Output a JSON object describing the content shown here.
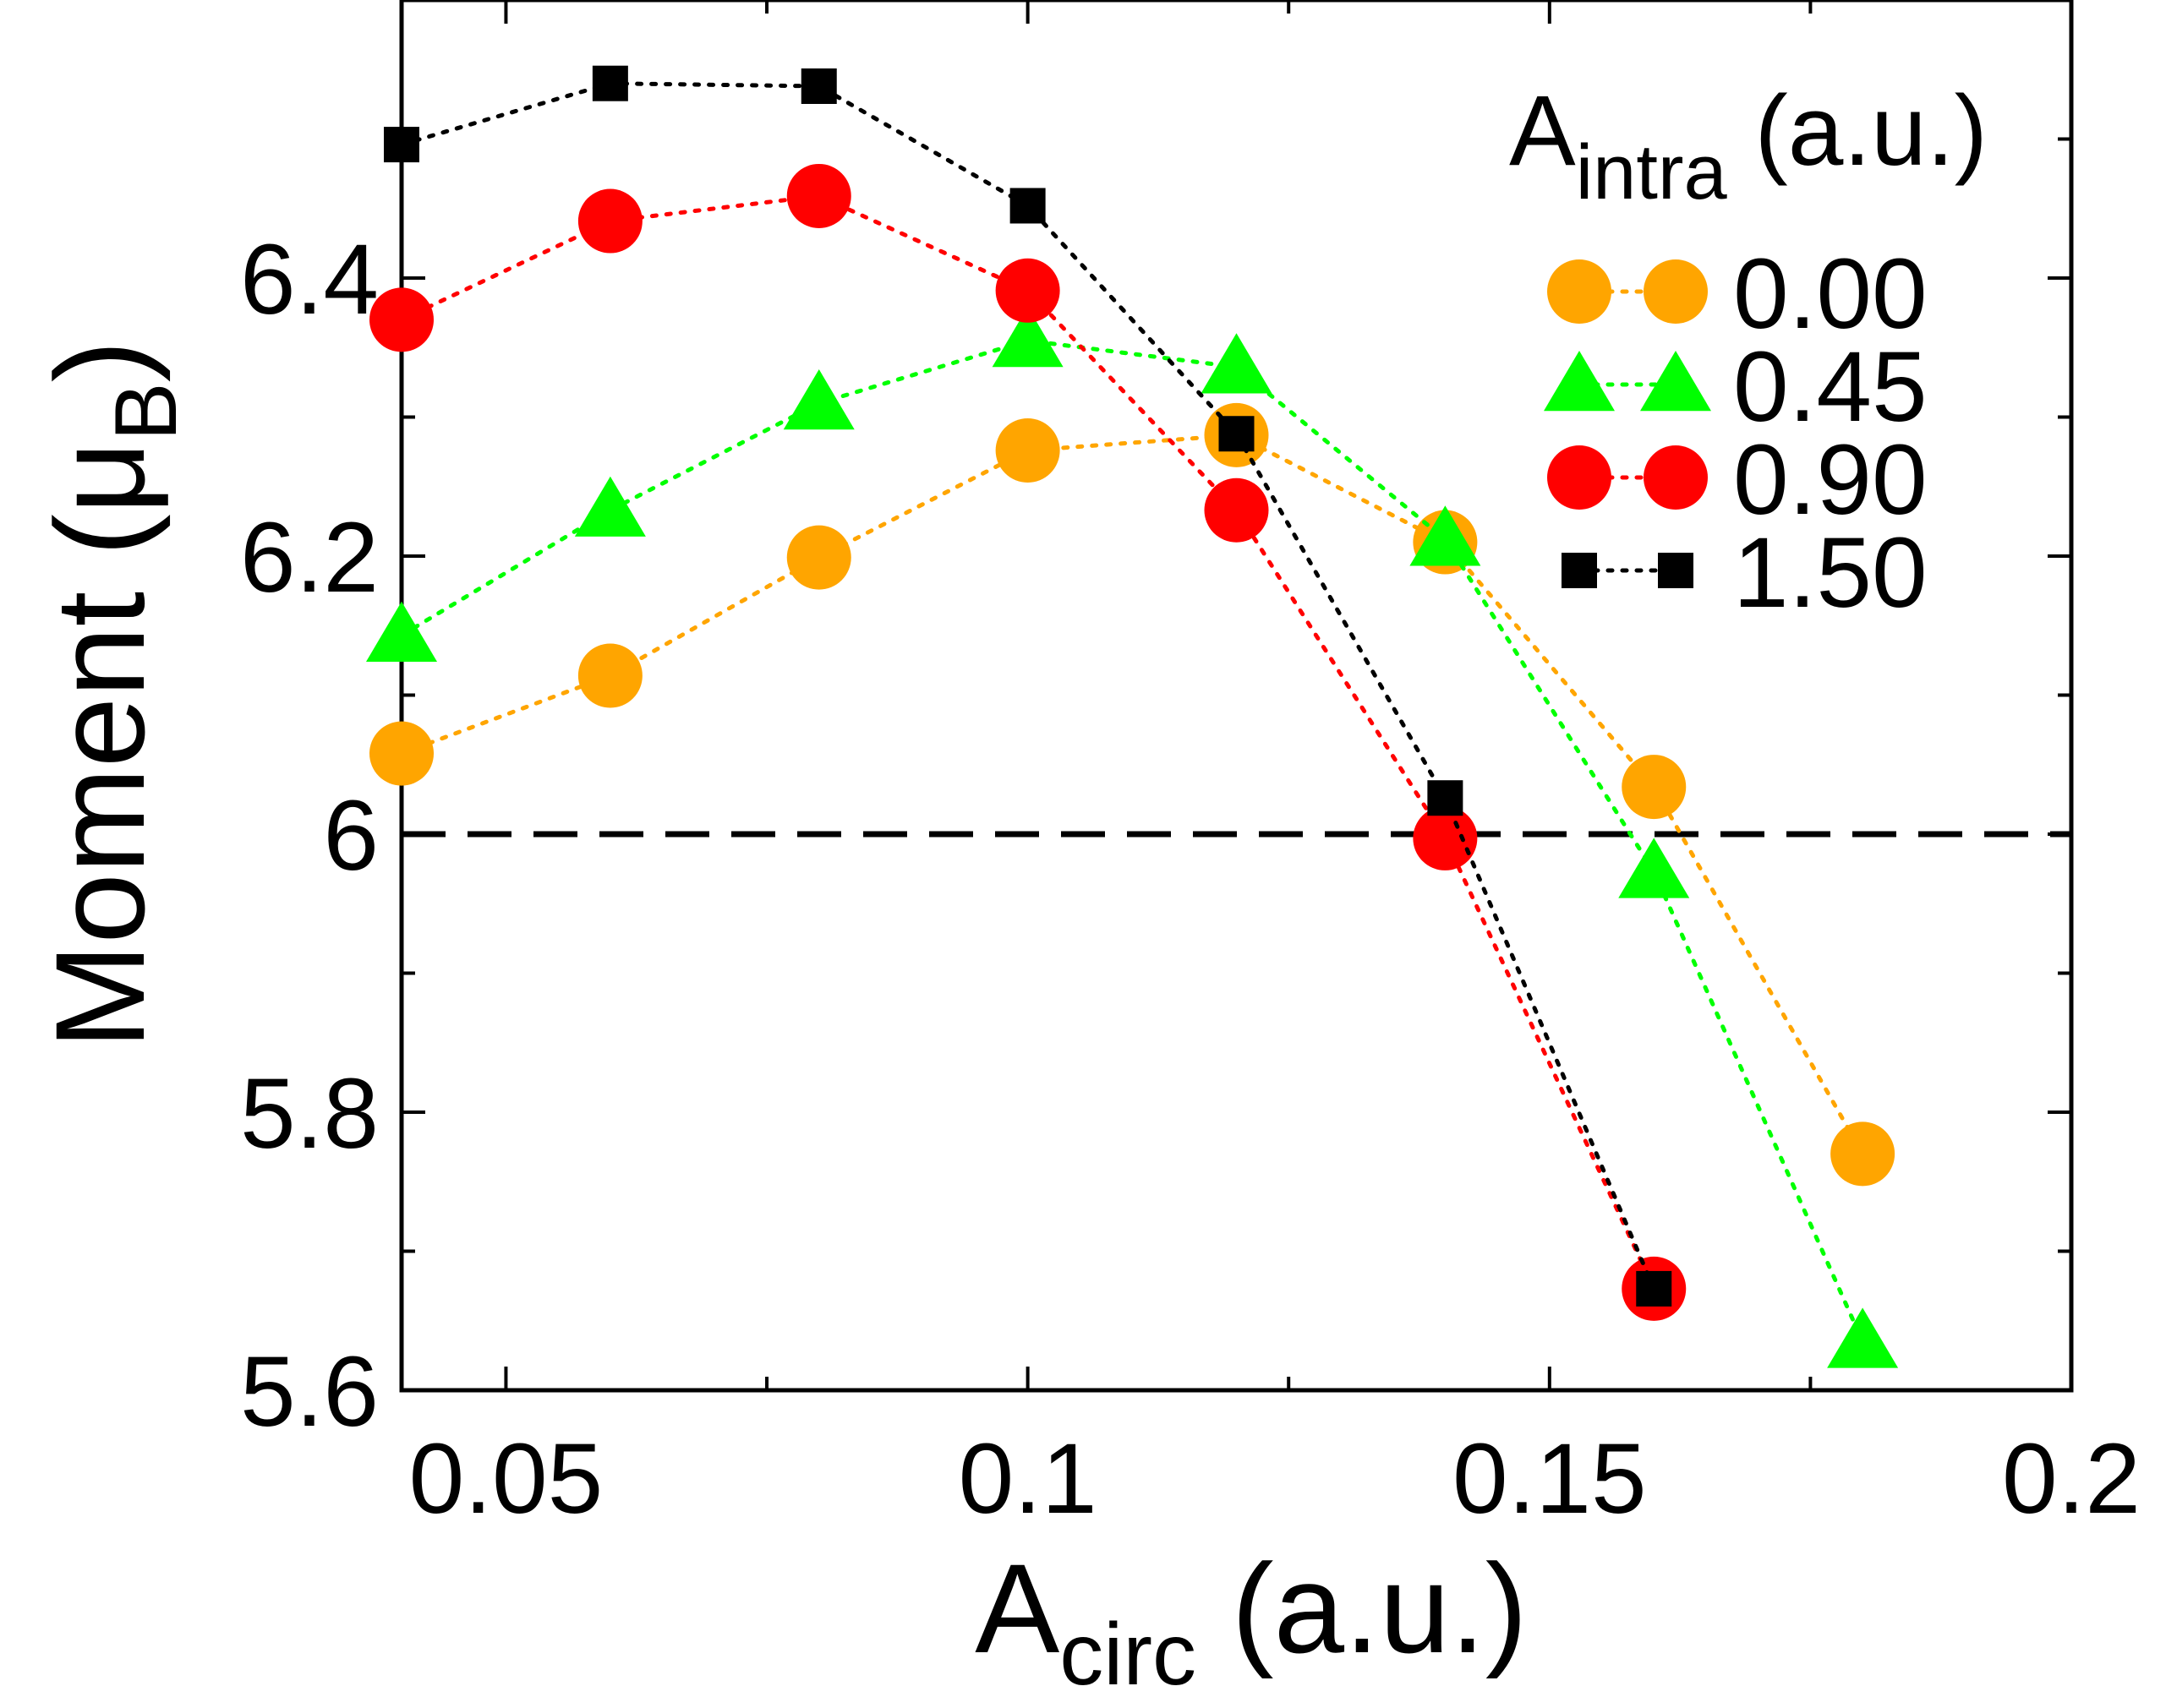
{
  "chart_data": {
    "type": "line",
    "xlabel": {
      "main": "A",
      "sub": "circ",
      "unit": " (a.u.)"
    },
    "ylabel": {
      "main": "Moment (μ",
      "sub": "B",
      "close": ")"
    },
    "xlim": [
      0.04,
      0.2
    ],
    "ylim": [
      5.6,
      6.6
    ],
    "x_ticks": [
      0.05,
      0.1,
      0.15,
      0.2
    ],
    "x_tick_labels": [
      "0.05",
      "0.1",
      "0.15",
      "0.2"
    ],
    "x_minor_ticks": [
      0.075,
      0.125,
      0.175
    ],
    "y_ticks": [
      5.6,
      5.8,
      6.0,
      6.2,
      6.4
    ],
    "y_tick_labels": [
      "5.6",
      "5.8",
      "6",
      "6.2",
      "6.4"
    ],
    "y_minor_ticks": [
      5.7,
      5.9,
      6.1,
      6.3,
      6.5
    ],
    "reference_line": {
      "y": 6.0,
      "style": "dashed",
      "color": "#000000"
    },
    "legend": {
      "title": {
        "main": "A",
        "sub": "intra",
        "unit": " (a.u.)"
      },
      "position": "top-right"
    },
    "series": [
      {
        "name": "0.00",
        "color": "#FFA500",
        "marker": "circle",
        "x": [
          0.04,
          0.06,
          0.08,
          0.1,
          0.12,
          0.14,
          0.16,
          0.18
        ],
        "y": [
          6.058,
          6.114,
          6.199,
          6.276,
          6.287,
          6.21,
          6.034,
          5.77
        ]
      },
      {
        "name": "0.45",
        "color": "#00FF00",
        "marker": "triangle",
        "x": [
          0.04,
          0.06,
          0.08,
          0.1,
          0.12,
          0.14,
          0.16,
          0.18
        ],
        "y": [
          6.143,
          6.233,
          6.31,
          6.355,
          6.336,
          6.212,
          5.973,
          5.635
        ]
      },
      {
        "name": "0.90",
        "color": "#FF0000",
        "marker": "circle",
        "x": [
          0.04,
          0.06,
          0.08,
          0.1,
          0.12,
          0.14,
          0.16
        ],
        "y": [
          6.37,
          6.441,
          6.459,
          6.391,
          6.233,
          5.997,
          5.673
        ]
      },
      {
        "name": "1.50",
        "color": "#000000",
        "marker": "square",
        "x": [
          0.04,
          0.06,
          0.08,
          0.1,
          0.12,
          0.14,
          0.16
        ],
        "y": [
          6.496,
          6.54,
          6.538,
          6.452,
          6.288,
          6.026,
          5.673
        ]
      }
    ]
  }
}
